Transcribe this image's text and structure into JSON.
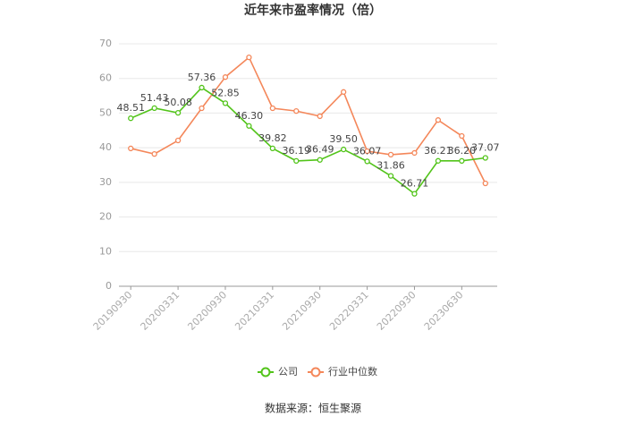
{
  "chart_data": {
    "type": "line",
    "title": "近年来市盈率情况（倍）",
    "source": "数据来源：恒生聚源",
    "categories": [
      "20190930",
      null,
      "20200331",
      null,
      "20200930",
      null,
      "20210331",
      null,
      "20210930",
      null,
      "20220331",
      null,
      "20220930",
      null,
      "20230630",
      null
    ],
    "series": [
      {
        "name": "公司",
        "color": "#52c41a",
        "values": [
          48.51,
          51.43,
          50.08,
          57.36,
          52.85,
          46.3,
          39.82,
          36.19,
          36.49,
          39.5,
          36.07,
          31.86,
          26.71,
          36.21,
          36.2,
          37.07
        ],
        "value_labels": [
          "48.51",
          "51.43",
          "50.08",
          "57.36",
          "52.85",
          "46.30",
          "39.82",
          "36.19",
          "36.49",
          "39.50",
          "36.07",
          "31.86",
          "26.71",
          "36.21",
          "36.20",
          "37.07"
        ]
      },
      {
        "name": "行业中位数",
        "color": "#f4875a",
        "values": [
          39.8,
          38.2,
          42.1,
          51.4,
          60.4,
          66.1,
          51.4,
          50.6,
          49.1,
          56.1,
          39.0,
          38.0,
          38.5,
          48.0,
          43.4,
          29.7
        ]
      }
    ],
    "ylim": [
      0,
      70
    ],
    "yticks": [
      0,
      10,
      20,
      30,
      40,
      50,
      60,
      70
    ],
    "grid": true,
    "legend": "bottom"
  }
}
